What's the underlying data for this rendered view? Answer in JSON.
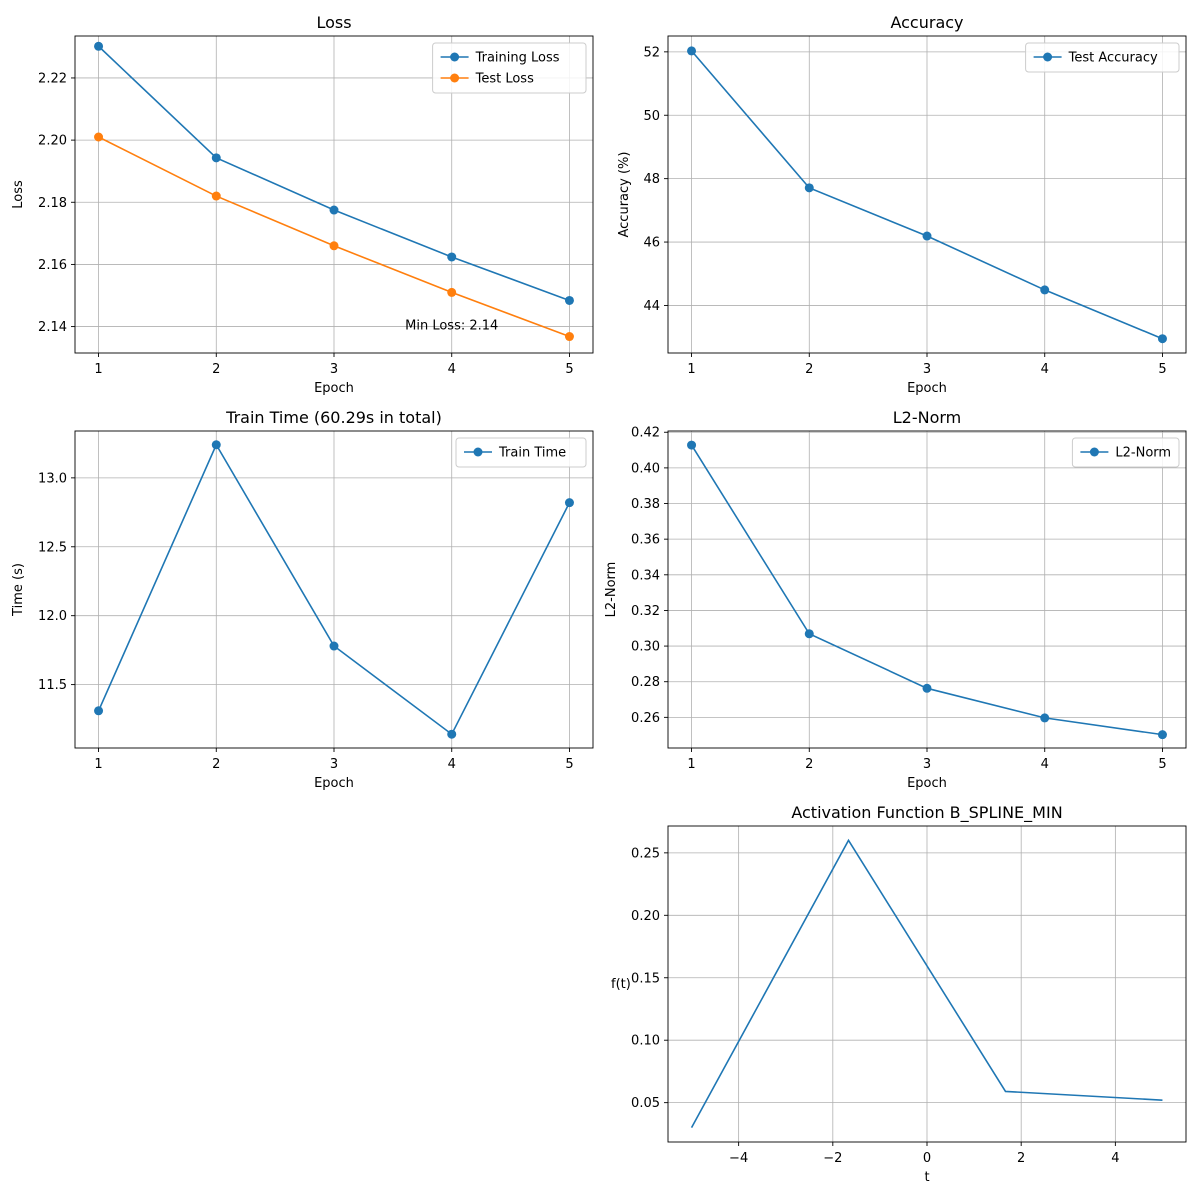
{
  "chart_data": [
    {
      "id": "loss",
      "type": "line",
      "title": "Loss",
      "xlabel": "Epoch",
      "ylabel": "Loss",
      "grid": true,
      "legend_position": "top-right",
      "xlim": [
        0.8,
        5.2
      ],
      "ylim": [
        2.1315,
        2.2335
      ],
      "xticks": [
        1,
        2,
        3,
        4,
        5
      ],
      "xtick_labels": [
        "1",
        "2",
        "3",
        "4",
        "5"
      ],
      "yticks": [
        2.14,
        2.16,
        2.18,
        2.2,
        2.22
      ],
      "ytick_labels": [
        "2.14",
        "2.16",
        "2.18",
        "2.20",
        "2.22"
      ],
      "series": [
        {
          "name": "Training Loss",
          "color": "#1f77b4",
          "marker": true,
          "x": [
            1,
            2,
            3,
            4,
            5
          ],
          "y": [
            2.2302,
            2.1943,
            2.1775,
            2.1624,
            2.1484
          ]
        },
        {
          "name": "Test Loss",
          "color": "#ff7f0e",
          "marker": true,
          "x": [
            1,
            2,
            3,
            4,
            5
          ],
          "y": [
            2.201,
            2.182,
            2.166,
            2.151,
            2.1368
          ]
        }
      ],
      "annotations": [
        {
          "text": "Min Loss: 2.14",
          "x": 4.0,
          "y": 2.1405
        }
      ]
    },
    {
      "id": "accuracy",
      "type": "line",
      "title": "Accuracy",
      "xlabel": "Epoch",
      "ylabel": "Accuracy (%)",
      "grid": true,
      "legend_position": "top-right",
      "xlim": [
        0.8,
        5.2
      ],
      "ylim": [
        42.5,
        52.5
      ],
      "xticks": [
        1,
        2,
        3,
        4,
        5
      ],
      "xtick_labels": [
        "1",
        "2",
        "3",
        "4",
        "5"
      ],
      "yticks": [
        44,
        46,
        48,
        50,
        52
      ],
      "ytick_labels": [
        "44",
        "46",
        "48",
        "50",
        "52"
      ],
      "series": [
        {
          "name": "Test Accuracy",
          "color": "#1f77b4",
          "marker": true,
          "x": [
            1,
            2,
            3,
            4,
            5
          ],
          "y": [
            52.03,
            47.71,
            46.19,
            44.49,
            42.95
          ]
        }
      ],
      "annotations": []
    },
    {
      "id": "train-time",
      "type": "line",
      "title": "Train Time (60.29s in total)",
      "xlabel": "Epoch",
      "ylabel": "Time (s)",
      "grid": true,
      "legend_position": "top-right",
      "xlim": [
        0.8,
        5.2
      ],
      "ylim": [
        11.04,
        13.34
      ],
      "xticks": [
        1,
        2,
        3,
        4,
        5
      ],
      "xtick_labels": [
        "1",
        "2",
        "3",
        "4",
        "5"
      ],
      "yticks": [
        11.5,
        12.0,
        12.5,
        13.0
      ],
      "ytick_labels": [
        "11.5",
        "12.0",
        "12.5",
        "13.0"
      ],
      "series": [
        {
          "name": "Train Time",
          "color": "#1f77b4",
          "marker": true,
          "x": [
            1,
            2,
            3,
            4,
            5
          ],
          "y": [
            11.31,
            13.24,
            11.78,
            11.14,
            12.82
          ]
        }
      ],
      "annotations": []
    },
    {
      "id": "l2-norm",
      "type": "line",
      "title": "L2-Norm",
      "xlabel": "Epoch",
      "ylabel": "L2-Norm",
      "grid": true,
      "legend_position": "top-right",
      "xlim": [
        0.8,
        5.2
      ],
      "ylim": [
        0.2428,
        0.4207
      ],
      "xticks": [
        1,
        2,
        3,
        4,
        5
      ],
      "xtick_labels": [
        "1",
        "2",
        "3",
        "4",
        "5"
      ],
      "yticks": [
        0.26,
        0.28,
        0.3,
        0.32,
        0.34,
        0.36,
        0.38,
        0.4,
        0.42
      ],
      "ytick_labels": [
        "0.26",
        "0.28",
        "0.30",
        "0.32",
        "0.34",
        "0.36",
        "0.38",
        "0.40",
        "0.42"
      ],
      "series": [
        {
          "name": "L2-Norm",
          "color": "#1f77b4",
          "marker": true,
          "x": [
            1,
            2,
            3,
            4,
            5
          ],
          "y": [
            0.4128,
            0.3069,
            0.2763,
            0.2597,
            0.2503
          ]
        }
      ],
      "annotations": []
    },
    {
      "id": "activation",
      "type": "line",
      "title": "Activation Function B_SPLINE_MIN",
      "xlabel": "t",
      "ylabel": "f(t)",
      "grid": true,
      "legend_position": "none",
      "xlim": [
        -5.5,
        5.5
      ],
      "ylim": [
        0.0185,
        0.2715
      ],
      "xticks": [
        -4,
        -2,
        0,
        2,
        4
      ],
      "xtick_labels": [
        "−4",
        "−2",
        "0",
        "2",
        "4"
      ],
      "yticks": [
        0.05,
        0.1,
        0.15,
        0.2,
        0.25
      ],
      "ytick_labels": [
        "0.05",
        "0.10",
        "0.15",
        "0.20",
        "0.25"
      ],
      "series": [
        {
          "name": "",
          "color": "#1f77b4",
          "marker": false,
          "x": [
            -5.0,
            -1.667,
            1.667,
            5.0
          ],
          "y": [
            0.03,
            0.26,
            0.059,
            0.052
          ]
        }
      ],
      "annotations": []
    }
  ]
}
